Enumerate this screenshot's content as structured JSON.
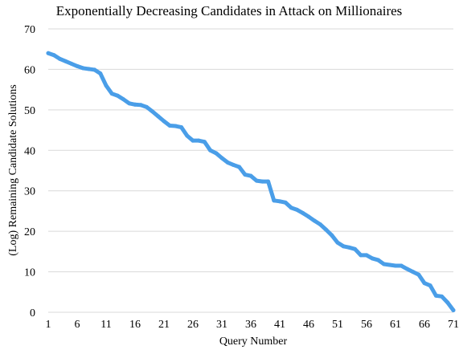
{
  "chart_data": {
    "type": "line",
    "title": "Exponentially Decreasing Candidates in Attack on Millionaires",
    "xlabel": "Query Number",
    "ylabel": "(Log) Remaining Candidate Solutions",
    "xlim": [
      1,
      71
    ],
    "ylim": [
      0,
      70
    ],
    "x_ticks": [
      1,
      6,
      11,
      16,
      21,
      26,
      31,
      36,
      41,
      46,
      51,
      56,
      61,
      66,
      71
    ],
    "y_ticks": [
      0,
      10,
      20,
      30,
      40,
      50,
      60,
      70
    ],
    "grid": true,
    "legend": "none",
    "colors": {
      "line": "#4a9ee8",
      "grid": "#d9d9d9"
    },
    "series": [
      {
        "x": [
          1,
          2,
          3,
          4,
          5,
          6,
          7,
          8,
          9,
          10,
          11,
          12,
          13,
          14,
          15,
          16,
          17,
          18,
          19,
          20,
          21,
          22,
          23,
          24,
          25,
          26,
          27,
          28,
          29,
          30,
          31,
          32,
          33,
          34,
          35,
          36,
          37,
          38,
          39,
          40,
          41,
          42,
          43,
          44,
          45,
          46,
          47,
          48,
          49,
          50,
          51,
          52,
          53,
          54,
          55,
          56,
          57,
          58,
          59,
          60,
          61,
          62,
          63,
          64,
          65,
          66,
          67,
          68,
          69,
          70,
          71
        ],
        "values": [
          64.0,
          63.5,
          62.6,
          62.0,
          61.4,
          60.8,
          60.3,
          60.1,
          59.9,
          59.0,
          56.0,
          54.0,
          53.5,
          52.6,
          51.6,
          51.3,
          51.2,
          50.7,
          49.6,
          48.4,
          47.2,
          46.1,
          46.0,
          45.7,
          43.6,
          42.4,
          42.4,
          42.1,
          40.0,
          39.3,
          38.1,
          37.0,
          36.4,
          35.9,
          34.0,
          33.7,
          32.5,
          32.3,
          32.3,
          27.6,
          27.4,
          27.1,
          25.8,
          25.3,
          24.5,
          23.6,
          22.6,
          21.7,
          20.4,
          19.0,
          17.2,
          16.3,
          16.0,
          15.6,
          14.1,
          14.1,
          13.3,
          12.9,
          11.9,
          11.7,
          11.5,
          11.5,
          10.7,
          10.0,
          9.3,
          7.2,
          6.6,
          4.1,
          3.9,
          2.4,
          0.5
        ]
      }
    ]
  }
}
